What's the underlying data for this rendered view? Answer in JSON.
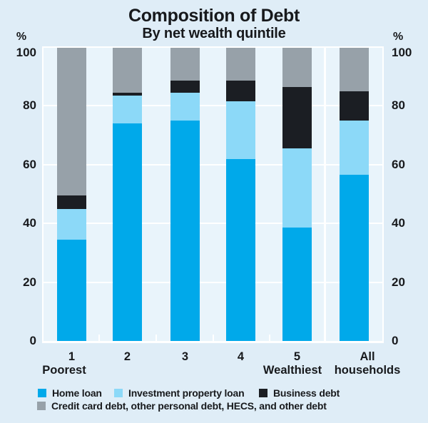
{
  "chart": {
    "title": "Composition of Debt",
    "subtitle": "By net wealth quintile",
    "unit_left": "%",
    "unit_right": "%"
  },
  "chart_data": {
    "type": "bar",
    "stacked": true,
    "title": "Composition of Debt",
    "subtitle": "By net wealth quintile",
    "categories": [
      "1",
      "2",
      "3",
      "4",
      "5",
      "All households"
    ],
    "x_axis": {
      "labels": [
        "1",
        "2",
        "3",
        "4",
        "5",
        "All"
      ],
      "sublabels": [
        "Poorest",
        "",
        "",
        "",
        "Wealthiest",
        "households"
      ]
    },
    "series": [
      {
        "name": "Home loan",
        "color": "#00A9EA",
        "values": [
          34.5,
          74,
          75,
          62,
          38.5,
          56.5
        ]
      },
      {
        "name": "Investment property loan",
        "color": "#8CD9F8",
        "values": [
          10.5,
          9.5,
          9.5,
          19.5,
          27,
          18.5
        ]
      },
      {
        "name": "Business debt",
        "color": "#1B1E23",
        "values": [
          4.5,
          1,
          4,
          7,
          21,
          10
        ]
      },
      {
        "name": "Credit card debt, other personal debt, HECS, and other debt",
        "color": "#97A1A9",
        "values": [
          50.5,
          15.5,
          11.5,
          11.5,
          13.5,
          15
        ]
      }
    ],
    "ylabel": "%",
    "ylim": [
      0,
      100
    ],
    "yticks": [
      0,
      20,
      40,
      60,
      80,
      100
    ],
    "grid": true,
    "gridcolor": "#FFFFFF",
    "legend_position": "bottom",
    "background": "#DFEDF7",
    "plot_background": "#E9F4FB"
  }
}
